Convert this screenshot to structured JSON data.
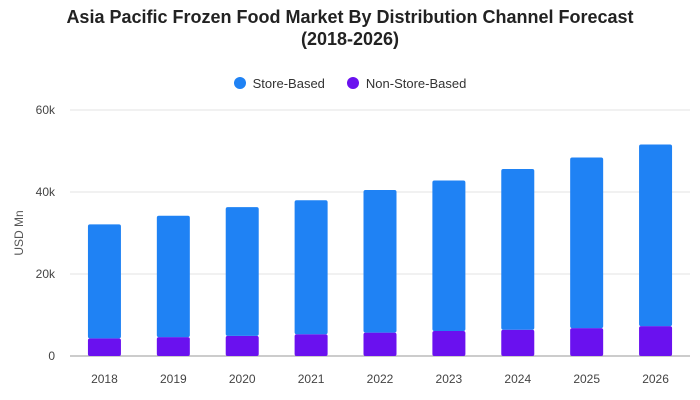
{
  "chart_data": {
    "type": "bar",
    "stacked": true,
    "title_lines": [
      "Asia Pacific Frozen Food Market By Distribution Channel Forecast",
      "(2018-2026)"
    ],
    "xlabel": "",
    "ylabel": "USD Mn",
    "categories": [
      "2018",
      "2019",
      "2020",
      "2021",
      "2022",
      "2023",
      "2024",
      "2025",
      "2026"
    ],
    "series": [
      {
        "name": "Non-Store-Based",
        "color": "#6a11ef",
        "values": [
          4300,
          4600,
          4900,
          5300,
          5700,
          6100,
          6400,
          6800,
          7300
        ]
      },
      {
        "name": "Store-Based",
        "color": "#1f82f4",
        "values": [
          27800,
          29600,
          31400,
          32700,
          34800,
          36700,
          39200,
          41600,
          44300
        ]
      }
    ],
    "ylim": [
      0,
      60000
    ],
    "yticks": [
      0,
      20000,
      40000,
      60000
    ],
    "ytick_labels": [
      "0",
      "20k",
      "40k",
      "60k"
    ],
    "grid": true,
    "legend_position": "top-center",
    "legend_order": [
      "Store-Based",
      "Non-Store-Based"
    ]
  }
}
